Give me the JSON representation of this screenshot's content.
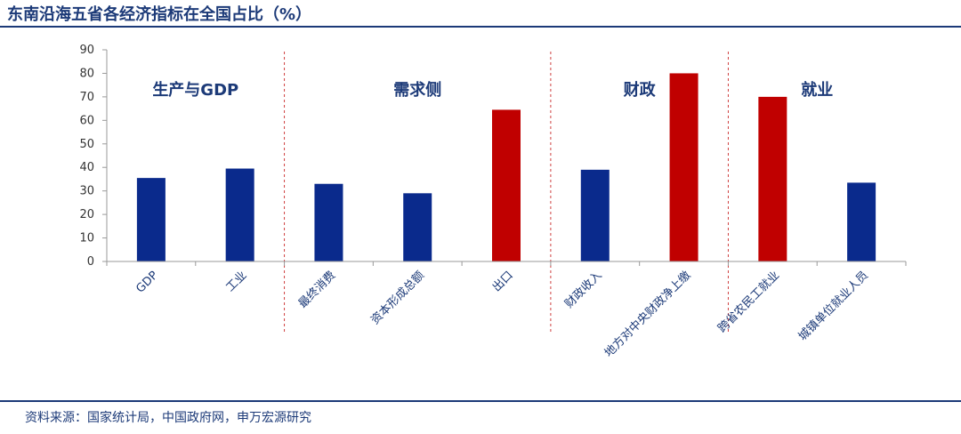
{
  "title": "东南沿海五省各经济指标在全国占比（%）",
  "source": "资料来源：国家统计局，中国政府网，申万宏源研究",
  "colors": {
    "primary": "#0a2a8c",
    "highlight": "#c00000",
    "text": "#1c3a78",
    "divider": "#d04040"
  },
  "chart_data": {
    "type": "bar",
    "title": "东南沿海五省各经济指标在全国占比（%）",
    "xlabel": "",
    "ylabel": "",
    "ylim": [
      0,
      90
    ],
    "yticks": [
      0,
      10,
      20,
      30,
      40,
      50,
      60,
      70,
      80,
      90
    ],
    "grid": false,
    "categories": [
      "GDP",
      "工业",
      "最终消费",
      "资本形成总额",
      "出口",
      "财政收入",
      "地方对中央财政净上缴",
      "跨省农民工就业",
      "城镇单位就业人员"
    ],
    "values": [
      35.5,
      39.5,
      33,
      29,
      64.5,
      39,
      80,
      70,
      33.5
    ],
    "bar_colors": [
      "#0a2a8c",
      "#0a2a8c",
      "#0a2a8c",
      "#0a2a8c",
      "#c00000",
      "#0a2a8c",
      "#c00000",
      "#c00000",
      "#0a2a8c"
    ],
    "groups": [
      {
        "label": "生产与GDP",
        "start": 0,
        "end": 1
      },
      {
        "label": "需求侧",
        "start": 2,
        "end": 4
      },
      {
        "label": "财政",
        "start": 5,
        "end": 6
      },
      {
        "label": "就业",
        "start": 7,
        "end": 8
      }
    ]
  }
}
